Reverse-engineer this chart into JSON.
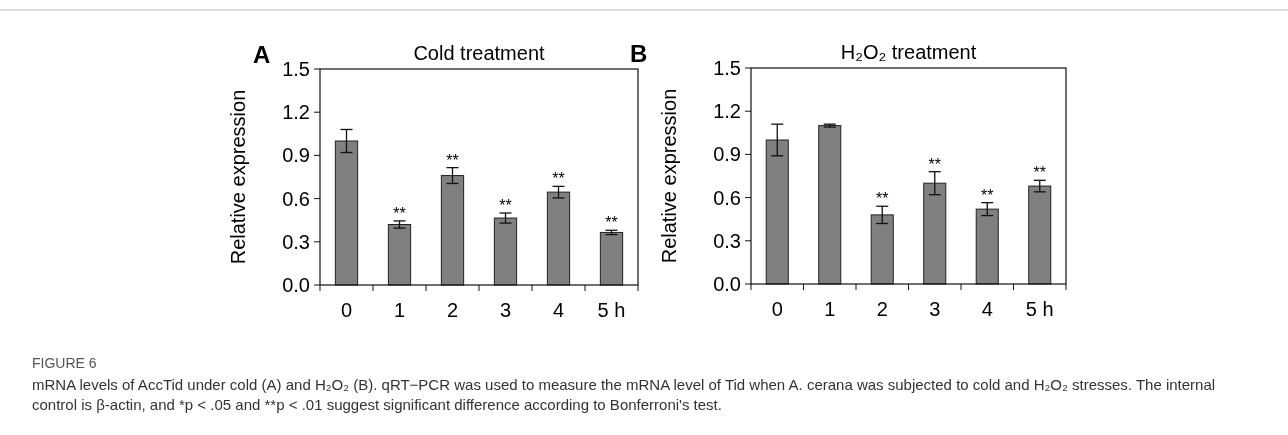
{
  "chart_data": [
    {
      "type": "bar",
      "title": "Cold treatment",
      "ylabel": "Relative expression",
      "categories": [
        "0",
        "1",
        "2",
        "3",
        "4",
        "5 h"
      ],
      "values": [
        1.0,
        0.42,
        0.76,
        0.465,
        0.645,
        0.365
      ],
      "errors": [
        0.08,
        0.025,
        0.055,
        0.035,
        0.04,
        0.015
      ],
      "color": "#808080",
      "ylim": [
        0,
        1.5
      ],
      "yticks": [
        {
          "value": 0,
          "label": "0.0"
        },
        0.3,
        0.6,
        0.9,
        1.2,
        1.5
      ],
      "grid": false,
      "annotations": [
        "A",
        {
          "text": "**",
          "x": "1",
          "y": 0.445
        },
        {
          "text": "**",
          "x": "2",
          "y": 0.815
        },
        {
          "text": "**",
          "x": "3",
          "y": 0.5
        },
        {
          "text": "**",
          "x": "4",
          "y": 0.685
        },
        {
          "text": "**",
          "x": "5 h",
          "y": 0.38
        }
      ]
    },
    {
      "type": "bar",
      "title": "H₂O₂ treatment",
      "ylabel": "Relative expression",
      "categories": [
        "0",
        "1",
        "2",
        "3",
        "4",
        "5 h"
      ],
      "values": [
        1.0,
        1.1,
        0.48,
        0.7,
        0.52,
        0.68
      ],
      "errors": [
        0.11,
        0.01,
        0.06,
        0.08,
        0.045,
        0.04
      ],
      "color": "#808080",
      "ylim": [
        0,
        1.5
      ],
      "yticks": [
        {
          "value": 0,
          "label": "0.0"
        },
        0.3,
        0.6,
        0.9,
        1.2,
        1.5
      ],
      "grid": false,
      "annotations": [
        "B",
        {
          "text": "**",
          "x": "2",
          "y": 0.54
        },
        {
          "text": "**",
          "x": "3",
          "y": 0.78
        },
        {
          "text": "**",
          "x": "4",
          "y": 0.565
        },
        {
          "text": "**",
          "x": "5 h",
          "y": 0.72
        }
      ]
    },
    {
      "type": "other",
      "title": "FIGURE 6",
      "annotations": [
        "mRNA levels of AccTid under cold (A) and H₂O₂ (B). qRT−PCR was used to measure the mRNA level of Tid when A. cerana was subjected to cold and H₂O₂ stresses. The internal control is β-actin, and *p < .05 and **p < .01 suggest significant difference according to Bonferroni's test."
      ]
    }
  ]
}
